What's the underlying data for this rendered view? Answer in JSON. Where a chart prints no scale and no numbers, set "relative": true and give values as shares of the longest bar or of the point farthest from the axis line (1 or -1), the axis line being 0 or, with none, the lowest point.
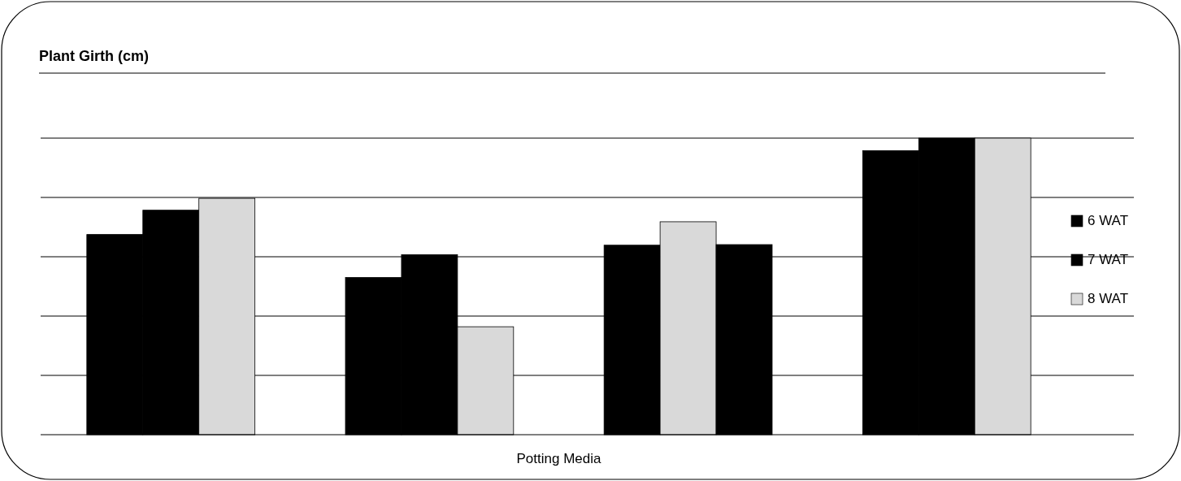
{
  "chart_data": {
    "type": "bar",
    "title": "Plant Girth (cm)",
    "xlabel": "Potting Media",
    "relative": true,
    "grid": "y",
    "legend": "right",
    "categories": [
      null,
      null,
      null,
      null
    ],
    "series": [
      {
        "name": "6 WAT",
        "color": "#000000",
        "colors": [
          "#000000",
          "#000000",
          "#000000",
          "#000000"
        ],
        "values": [
          0.675,
          0.53,
          0.639,
          0.958
        ]
      },
      {
        "name": "7 WAT",
        "color": "#000000",
        "colors": [
          "#000000",
          "#000000",
          "#d9d9d9",
          "#000000"
        ],
        "values": [
          0.757,
          0.607,
          0.718,
          1
        ]
      },
      {
        "name": "8 WAT",
        "color": "#d9d9d9",
        "colors": [
          "#d9d9d9",
          "#d9d9d9",
          "#000000",
          "#d9d9d9"
        ],
        "values": [
          0.797,
          0.364,
          0.641,
          1
        ]
      }
    ]
  }
}
